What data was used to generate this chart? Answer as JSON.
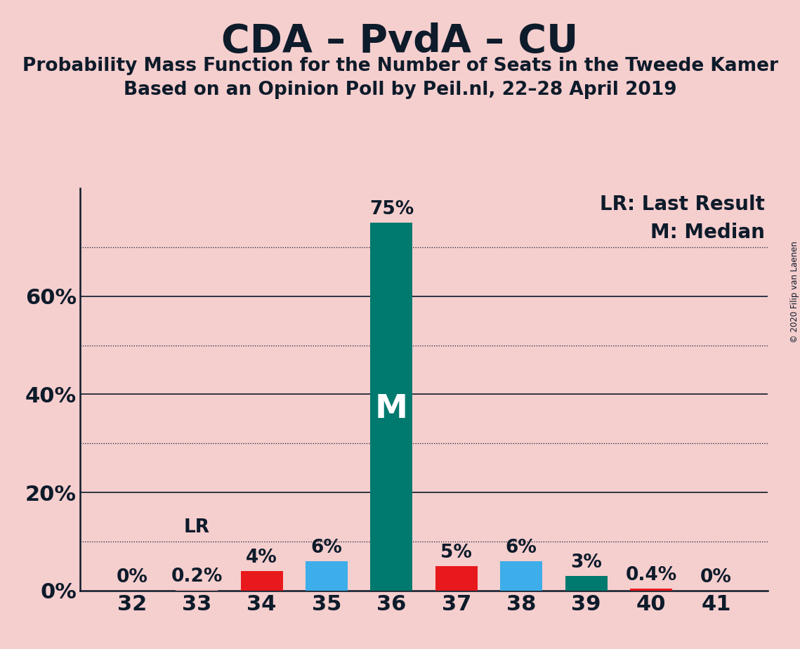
{
  "title": "CDA – PvdA – CU",
  "subtitle1": "Probability Mass Function for the Number of Seats in the Tweede Kamer",
  "subtitle2": "Based on an Opinion Poll by Peil.nl, 22–28 April 2019",
  "copyright": "© 2020 Filip van Laenen",
  "categories": [
    32,
    33,
    34,
    35,
    36,
    37,
    38,
    39,
    40,
    41
  ],
  "values": [
    0.0,
    0.2,
    4.0,
    6.0,
    75.0,
    5.0,
    6.0,
    3.0,
    0.4,
    0.0
  ],
  "bar_colors": [
    "#f2b8b8",
    "#f2b8b8",
    "#e8191c",
    "#3daee9",
    "#007a6e",
    "#e8191c",
    "#3daee9",
    "#007a6e",
    "#e8191c",
    "#e8191c"
  ],
  "median_bar": 36,
  "lr_bar": 33,
  "labels": [
    "0%",
    "0.2%",
    "4%",
    "6%",
    "75%",
    "5%",
    "6%",
    "3%",
    "0.4%",
    "0%"
  ],
  "median_label": "M",
  "lr_label": "LR",
  "background_color": "#f5cece",
  "yticks": [
    0,
    20,
    40,
    60
  ],
  "ytick_labels": [
    "0%",
    "20%",
    "40%",
    "60%"
  ],
  "ymax": 82,
  "dotted_lines": [
    10,
    30,
    50,
    70
  ],
  "solid_lines": [
    20,
    40,
    60
  ],
  "title_fontsize": 40,
  "subtitle_fontsize": 19,
  "axis_fontsize": 22,
  "label_fontsize": 19,
  "legend_fontsize": 20,
  "text_color": "#0d1b2a",
  "bar_width": 0.65
}
